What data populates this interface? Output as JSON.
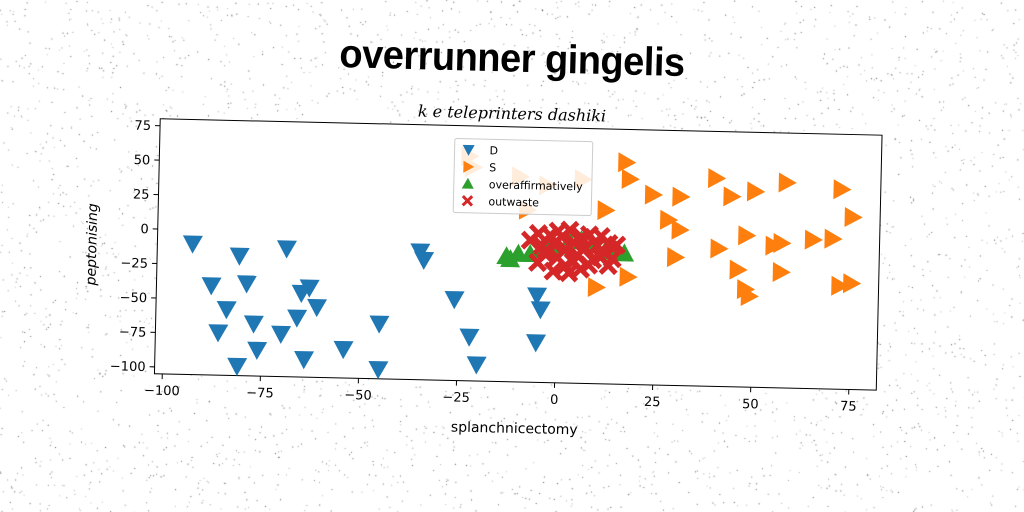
{
  "chart_data": {
    "type": "scatter",
    "title": "overrunner gingelis",
    "subtitle": "k e teleprinters dashiki",
    "xlabel": "splanchnicectomy",
    "ylabel": "peptonising",
    "xlim": [
      -102,
      82
    ],
    "ylim": [
      -105,
      80
    ],
    "xticks": [
      -100,
      -75,
      -50,
      -25,
      0,
      25,
      50,
      75
    ],
    "yticks": [
      75,
      50,
      25,
      0,
      -25,
      -50,
      -75,
      -100
    ],
    "xtick_labels": [
      "−100",
      "−75",
      "−50",
      "−25",
      "0",
      "25",
      "50",
      "75"
    ],
    "ytick_labels": [
      "75",
      "50",
      "25",
      "0",
      "−25",
      "−50",
      "−75",
      "−100"
    ],
    "legend_position": "top-center",
    "series": [
      {
        "name": "D",
        "marker": "triangle-down",
        "color": "#1f77b4",
        "points": [
          [
            -93,
            -10
          ],
          [
            -81,
            -18
          ],
          [
            -88,
            -40
          ],
          [
            -79,
            -38
          ],
          [
            -84,
            -57
          ],
          [
            -86,
            -74
          ],
          [
            -77,
            -67
          ],
          [
            -76,
            -86
          ],
          [
            -81,
            -98
          ],
          [
            -69,
            -12
          ],
          [
            -70,
            -74
          ],
          [
            -65,
            -44
          ],
          [
            -66,
            -62
          ],
          [
            -63,
            -40
          ],
          [
            -61,
            -54
          ],
          [
            -64,
            -92
          ],
          [
            -54,
            -84
          ],
          [
            -45,
            -65
          ],
          [
            -45,
            -98
          ],
          [
            -35,
            -12
          ],
          [
            -34,
            -18
          ],
          [
            -26,
            -46
          ],
          [
            -22,
            -73
          ],
          [
            -20,
            -93
          ],
          [
            -5,
            -42
          ],
          [
            -4,
            -52
          ],
          [
            -5,
            -76
          ]
        ]
      },
      {
        "name": "S",
        "marker": "triangle-right",
        "color": "#ff7f0e",
        "points": [
          [
            -23,
            58
          ],
          [
            -22,
            50
          ],
          [
            -10,
            44
          ],
          [
            -8,
            20
          ],
          [
            -3,
            38
          ],
          [
            6,
            43
          ],
          [
            17,
            56
          ],
          [
            18,
            44
          ],
          [
            12,
            21
          ],
          [
            24,
            33
          ],
          [
            28,
            15
          ],
          [
            31,
            32
          ],
          [
            31,
            8
          ],
          [
            30,
            -12
          ],
          [
            40,
            46
          ],
          [
            44,
            33
          ],
          [
            41,
            -5
          ],
          [
            46,
            -20
          ],
          [
            48,
            -34
          ],
          [
            49,
            -39
          ],
          [
            48,
            5
          ],
          [
            50,
            37
          ],
          [
            58,
            44
          ],
          [
            57,
            0
          ],
          [
            55,
            -2
          ],
          [
            57,
            -21
          ],
          [
            65,
            3
          ],
          [
            70,
            4
          ],
          [
            72,
            40
          ],
          [
            75,
            20
          ],
          [
            72,
            -30
          ],
          [
            75,
            -28
          ],
          [
            18,
            -27
          ],
          [
            10,
            -35
          ]
        ]
      },
      {
        "name": "overaffirmatively",
        "marker": "triangle-up",
        "color": "#2ca02c",
        "points": [
          [
            -13,
            -14
          ],
          [
            -10,
            -12
          ],
          [
            -7,
            -12
          ],
          [
            -4,
            -9
          ],
          [
            -2,
            -5
          ],
          [
            0,
            -6
          ],
          [
            3,
            -2
          ],
          [
            6,
            -1
          ],
          [
            9,
            -4
          ],
          [
            12,
            -9
          ],
          [
            15,
            -8
          ],
          [
            17,
            -10
          ],
          [
            -12,
            -16
          ]
        ]
      },
      {
        "name": "outwaste",
        "marker": "x-filled",
        "color": "#d62728",
        "points": [
          [
            -7,
            -2
          ],
          [
            -5,
            3
          ],
          [
            -4,
            -6
          ],
          [
            -3,
            -12
          ],
          [
            -2,
            2
          ],
          [
            -1,
            -4
          ],
          [
            0,
            -14
          ],
          [
            1,
            1
          ],
          [
            2,
            -8
          ],
          [
            3,
            6
          ],
          [
            4,
            -3
          ],
          [
            5,
            -12
          ],
          [
            6,
            1
          ],
          [
            7,
            -7
          ],
          [
            8,
            3
          ],
          [
            9,
            -15
          ],
          [
            10,
            -5
          ],
          [
            11,
            2
          ],
          [
            12,
            -10
          ],
          [
            13,
            -3
          ],
          [
            14,
            -14
          ],
          [
            2,
            -20
          ],
          [
            -5,
            -18
          ],
          [
            8,
            -19
          ],
          [
            15,
            -4
          ],
          [
            0,
            5
          ],
          [
            4,
            -17
          ],
          [
            -3,
            -9
          ],
          [
            11,
            -13
          ],
          [
            6,
            -22
          ],
          [
            -1,
            -24
          ],
          [
            13,
            -19
          ],
          [
            3,
            -25
          ]
        ]
      }
    ]
  }
}
